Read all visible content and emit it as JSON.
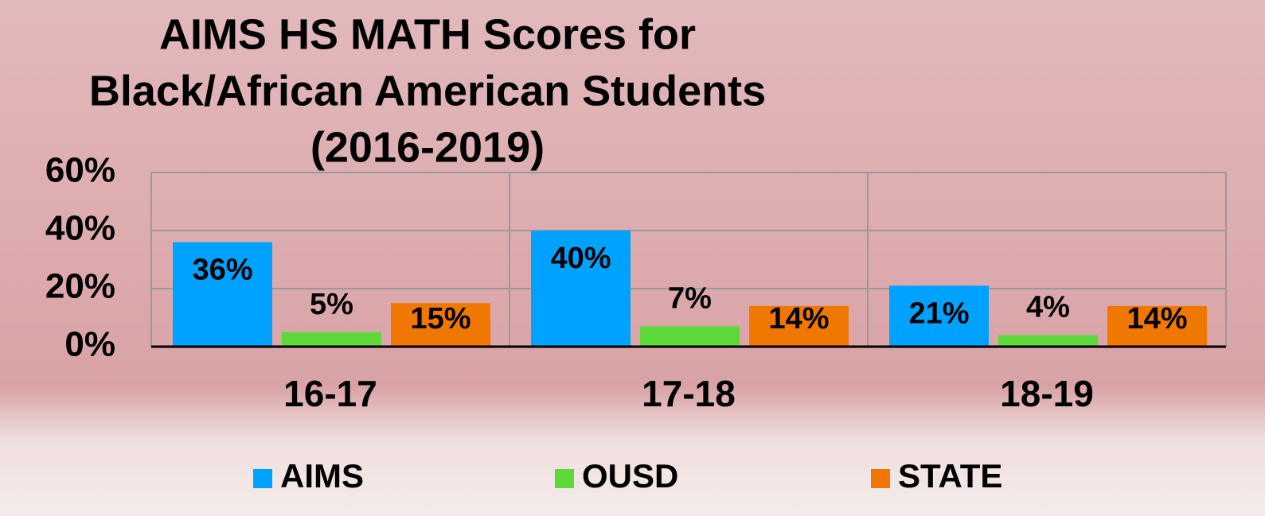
{
  "chart_data": {
    "type": "bar",
    "title": [
      "AIMS HS MATH Scores for",
      "Black/African American Students",
      "(2016-2019)"
    ],
    "categories": [
      "16-17",
      "17-18",
      "18-19"
    ],
    "series": [
      {
        "name": "AIMS",
        "color": "#00a2ff",
        "values": [
          36,
          40,
          21
        ],
        "value_labels": [
          "36%",
          "40%",
          "21%"
        ]
      },
      {
        "name": "OUSD",
        "color": "#5ed93a",
        "values": [
          5,
          7,
          4
        ],
        "value_labels": [
          "5%",
          "7%",
          "4%"
        ]
      },
      {
        "name": "STATE",
        "color": "#f07800",
        "values": [
          15,
          14,
          14
        ],
        "value_labels": [
          "15%",
          "14%",
          "14%"
        ]
      }
    ],
    "ylim": [
      0,
      60
    ],
    "yticks": [
      {
        "value": 0,
        "label": "0%"
      },
      {
        "value": 20,
        "label": "20%"
      },
      {
        "value": 40,
        "label": "40%"
      },
      {
        "value": 60,
        "label": "60%"
      }
    ],
    "grid": true,
    "legend": "bottom"
  }
}
